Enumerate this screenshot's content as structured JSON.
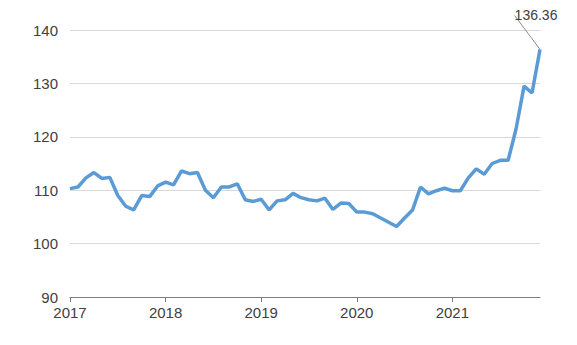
{
  "chart_data": {
    "type": "line",
    "categories": [
      "2017",
      null,
      null,
      null,
      null,
      null,
      null,
      null,
      null,
      null,
      null,
      null,
      "2018",
      null,
      null,
      null,
      null,
      null,
      null,
      null,
      null,
      null,
      null,
      null,
      "2019",
      null,
      null,
      null,
      null,
      null,
      null,
      null,
      null,
      null,
      null,
      null,
      "2020",
      null,
      null,
      null,
      null,
      null,
      null,
      null,
      null,
      null,
      null,
      null,
      "2021",
      null,
      null,
      null,
      null,
      null,
      null,
      null,
      null,
      null,
      null,
      null
    ],
    "values": [
      110.3,
      110.6,
      112.3,
      113.3,
      112.2,
      112.4,
      109.0,
      107.0,
      106.3,
      109.0,
      108.8,
      110.8,
      111.5,
      111.0,
      113.6,
      113.1,
      113.3,
      110.0,
      108.6,
      110.6,
      110.6,
      111.2,
      108.2,
      107.9,
      108.3,
      106.3,
      108.0,
      108.2,
      109.4,
      108.6,
      108.2,
      108.0,
      108.5,
      106.4,
      107.6,
      107.5,
      105.9,
      105.9,
      105.6,
      104.8,
      104.0,
      103.2,
      104.8,
      106.3,
      110.6,
      109.3,
      109.9,
      110.4,
      109.9,
      109.9,
      112.3,
      114.0,
      113.0,
      115.0,
      115.6,
      115.6,
      121.5,
      129.5,
      128.2,
      136.36
    ],
    "color": "#5b9bd5",
    "ylim": [
      90,
      140
    ],
    "yticks": [
      90,
      100,
      110,
      120,
      130,
      140
    ],
    "grid": true,
    "annotations": [
      {
        "text": "136.36",
        "value": 136.36
      }
    ]
  }
}
